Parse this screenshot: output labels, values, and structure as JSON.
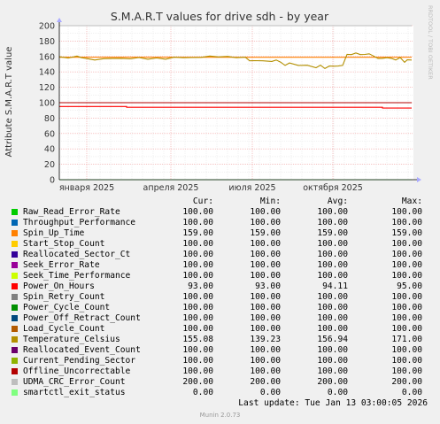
{
  "chart_data": {
    "type": "line",
    "title": "S.M.A.R.T values for drive sdh - by year",
    "ylabel": "Attribute S.M.A.R.T value",
    "side_label": "RRDTOOL / TOBI OETIKER",
    "ylim": [
      0,
      200
    ],
    "y_ticks": [
      "0",
      "20",
      "40",
      "60",
      "80",
      "100",
      "120",
      "140",
      "160",
      "180",
      "200"
    ],
    "x_ticks": [
      "января 2025",
      "апреля 2025",
      "июля 2025",
      "октября 2025"
    ],
    "grid": true,
    "columns": [
      "Cur:",
      "Min:",
      "Avg:",
      "Max:"
    ],
    "series": [
      {
        "name": "Raw_Read_Error_Rate",
        "color": "#00cc00",
        "cur": "100.00",
        "min": "100.00",
        "avg": "100.00",
        "max": "100.00"
      },
      {
        "name": "Throughput_Performance",
        "color": "#0066b3",
        "cur": "100.00",
        "min": "100.00",
        "avg": "100.00",
        "max": "100.00"
      },
      {
        "name": "Spin_Up_Time",
        "color": "#ff8000",
        "cur": "159.00",
        "min": "159.00",
        "avg": "159.00",
        "max": "159.00"
      },
      {
        "name": "Start_Stop_Count",
        "color": "#ffcc00",
        "cur": "100.00",
        "min": "100.00",
        "avg": "100.00",
        "max": "100.00"
      },
      {
        "name": "Reallocated_Sector_Ct",
        "color": "#330099",
        "cur": "100.00",
        "min": "100.00",
        "avg": "100.00",
        "max": "100.00"
      },
      {
        "name": "Seek_Error_Rate",
        "color": "#990099",
        "cur": "100.00",
        "min": "100.00",
        "avg": "100.00",
        "max": "100.00"
      },
      {
        "name": "Seek_Time_Performance",
        "color": "#ccff00",
        "cur": "100.00",
        "min": "100.00",
        "avg": "100.00",
        "max": "100.00"
      },
      {
        "name": "Power_On_Hours",
        "color": "#ff0000",
        "cur": "93.00",
        "min": "93.00",
        "avg": "94.11",
        "max": "95.00"
      },
      {
        "name": "Spin_Retry_Count",
        "color": "#808080",
        "cur": "100.00",
        "min": "100.00",
        "avg": "100.00",
        "max": "100.00"
      },
      {
        "name": "Power_Cycle_Count",
        "color": "#008f00",
        "cur": "100.00",
        "min": "100.00",
        "avg": "100.00",
        "max": "100.00"
      },
      {
        "name": "Power_Off_Retract_Count",
        "color": "#00487d",
        "cur": "100.00",
        "min": "100.00",
        "avg": "100.00",
        "max": "100.00"
      },
      {
        "name": "Load_Cycle_Count",
        "color": "#b35a00",
        "cur": "100.00",
        "min": "100.00",
        "avg": "100.00",
        "max": "100.00"
      },
      {
        "name": "Temperature_Celsius",
        "color": "#b38f00",
        "cur": "155.08",
        "min": "139.23",
        "avg": "156.94",
        "max": "171.00"
      },
      {
        "name": "Reallocated_Event_Count",
        "color": "#6b006b",
        "cur": "100.00",
        "min": "100.00",
        "avg": "100.00",
        "max": "100.00"
      },
      {
        "name": "Current_Pending_Sector",
        "color": "#8fb300",
        "cur": "100.00",
        "min": "100.00",
        "avg": "100.00",
        "max": "100.00"
      },
      {
        "name": "Offline_Uncorrectable",
        "color": "#b30000",
        "cur": "100.00",
        "min": "100.00",
        "avg": "100.00",
        "max": "100.00"
      },
      {
        "name": "UDMA_CRC_Error_Count",
        "color": "#bebebe",
        "cur": "200.00",
        "min": "200.00",
        "avg": "200.00",
        "max": "200.00"
      },
      {
        "name": "smartctl_exit_status",
        "color": "#80ff80",
        "cur": "0.00",
        "min": "0.00",
        "avg": "0.00",
        "max": "0.00"
      }
    ]
  },
  "last_update": "Last update: Tue Jan 13 03:00:05 2026",
  "footer": "Munin 2.0.73"
}
